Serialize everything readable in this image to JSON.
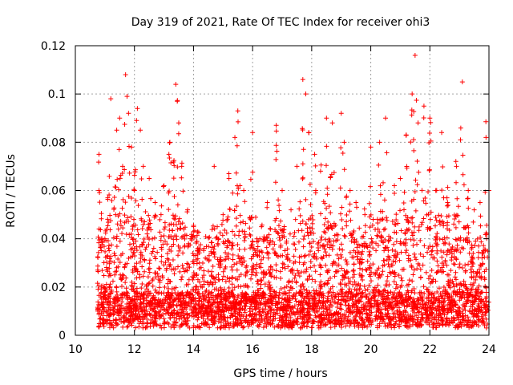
{
  "chart_data": {
    "type": "scatter",
    "title": "Day 319 of 2021, Rate Of TEC Index for receiver ohi3",
    "xlabel": "GPS time / hours",
    "ylabel": "ROTI / TECUs",
    "xlim": [
      10,
      24
    ],
    "ylim": [
      0,
      0.12
    ],
    "xticks": [
      "10",
      "12",
      "14",
      "16",
      "18",
      "20",
      "22",
      "24"
    ],
    "yticks": [
      "0",
      "0.02",
      "0.04",
      "0.06",
      "0.08",
      "0.1",
      "0.12"
    ],
    "grid": true,
    "marker": "+",
    "color": "#ff0000",
    "series": [
      {
        "x": [
          10.8,
          10.8,
          11.0,
          11.2,
          11.4,
          11.5,
          11.6,
          11.7,
          11.75,
          11.8,
          11.9,
          12.0,
          12.1,
          12.2,
          12.3,
          12.5,
          12.7,
          12.9,
          13.0,
          13.2,
          13.4,
          13.45,
          13.5,
          13.6,
          13.8,
          14.0,
          14.2,
          14.4,
          14.7,
          15.0,
          15.2,
          15.4,
          15.5,
          15.7,
          16.0,
          16.3,
          16.5,
          16.8,
          17.0,
          17.3,
          17.5,
          17.7,
          17.8,
          17.9,
          18.1,
          18.3,
          18.5,
          18.7,
          19.0,
          19.1,
          19.3,
          19.5,
          19.8,
          20.0,
          20.3,
          20.5,
          20.8,
          21.0,
          21.2,
          21.4,
          21.5,
          21.6,
          21.8,
          22.0,
          22.2,
          22.4,
          22.6,
          22.9,
          23.1,
          23.3,
          23.5,
          23.7,
          23.9,
          24.0
        ],
        "y": [
          0.075,
          0.06,
          0.04,
          0.098,
          0.085,
          0.09,
          0.07,
          0.108,
          0.099,
          0.092,
          0.078,
          0.06,
          0.094,
          0.085,
          0.07,
          0.065,
          0.055,
          0.05,
          0.062,
          0.08,
          0.104,
          0.097,
          0.088,
          0.07,
          0.052,
          0.045,
          0.03,
          0.032,
          0.07,
          0.05,
          0.065,
          0.082,
          0.093,
          0.06,
          0.084,
          0.045,
          0.055,
          0.087,
          0.06,
          0.052,
          0.07,
          0.106,
          0.1,
          0.084,
          0.075,
          0.068,
          0.09,
          0.088,
          0.092,
          0.08,
          0.06,
          0.055,
          0.05,
          0.078,
          0.08,
          0.09,
          0.062,
          0.065,
          0.083,
          0.1,
          0.116,
          0.088,
          0.095,
          0.09,
          0.06,
          0.084,
          0.055,
          0.07,
          0.105,
          0.06,
          0.052,
          0.055,
          0.082,
          0.06
        ]
      }
    ]
  }
}
